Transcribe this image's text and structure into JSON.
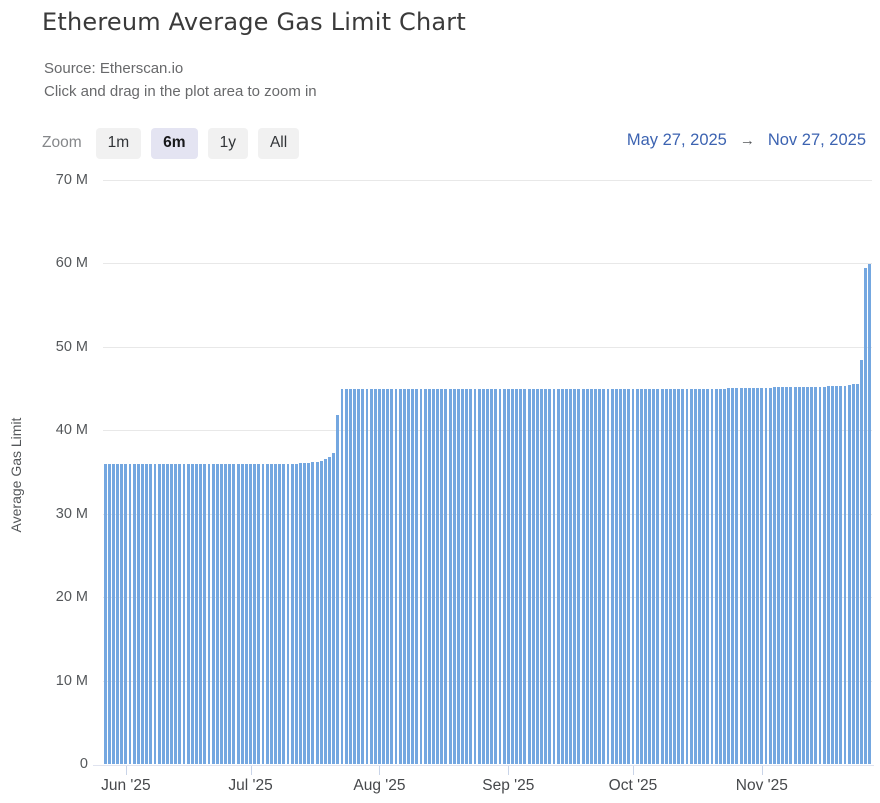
{
  "header": {
    "title": "Ethereum Average Gas Limit Chart",
    "source": "Source: Etherscan.io",
    "hint": "Click and drag in the plot area to zoom in"
  },
  "zoom_controls": {
    "label": "Zoom",
    "buttons": [
      {
        "label": "1m",
        "selected": false
      },
      {
        "label": "6m",
        "selected": true
      },
      {
        "label": "1y",
        "selected": false
      },
      {
        "label": "All",
        "selected": false
      }
    ]
  },
  "date_range": {
    "from": "May 27, 2025",
    "arrow": "→",
    "to": "Nov 27, 2025"
  },
  "colors": {
    "bar": "#74a7e0",
    "grid_line": "#e8e8e8",
    "axis_line": "#dfe3ef",
    "tick_mark": "#c9d4e8",
    "date_link": "#3c63b1",
    "zoom_button_bg": "#f1f1f1",
    "zoom_button_selected_bg": "#e4e4f2"
  },
  "chart_data": {
    "type": "bar",
    "title": "Ethereum Average Gas Limit Chart",
    "xlabel": "",
    "ylabel": "Average Gas Limit",
    "unit": "millions of gas (M)",
    "interval": "daily",
    "start_date": "May 27, 2025",
    "end_date": "Nov 27, 2025",
    "ylim_m": [
      0,
      70
    ],
    "grid": true,
    "legend": "none",
    "y_ticks": [
      {
        "label": "70 M",
        "value_m": 70
      },
      {
        "label": "60 M",
        "value_m": 60
      },
      {
        "label": "50 M",
        "value_m": 50
      },
      {
        "label": "40 M",
        "value_m": 40
      },
      {
        "label": "30 M",
        "value_m": 30
      },
      {
        "label": "20 M",
        "value_m": 20
      },
      {
        "label": "10 M",
        "value_m": 10
      },
      {
        "label": "0",
        "value_m": 0
      }
    ],
    "x_ticks": [
      {
        "label": "Jun '25",
        "day_index": 5
      },
      {
        "label": "Jul '25",
        "day_index": 35
      },
      {
        "label": "Aug '25",
        "day_index": 66
      },
      {
        "label": "Sep '25",
        "day_index": 97
      },
      {
        "label": "Oct '25",
        "day_index": 127
      },
      {
        "label": "Nov '25",
        "day_index": 158
      }
    ],
    "values_m": [
      35.9,
      35.9,
      35.9,
      35.9,
      35.9,
      35.9,
      35.9,
      35.9,
      35.9,
      35.9,
      35.9,
      35.9,
      35.9,
      35.9,
      35.9,
      35.9,
      35.9,
      35.9,
      35.9,
      35.9,
      35.9,
      35.9,
      35.9,
      35.9,
      35.9,
      35.9,
      35.9,
      35.9,
      35.9,
      35.9,
      35.9,
      35.9,
      35.9,
      35.9,
      35.9,
      35.9,
      35.9,
      35.9,
      35.9,
      35.9,
      35.9,
      35.9,
      35.9,
      35.9,
      35.9,
      35.9,
      35.9,
      36.0,
      36.0,
      36.1,
      36.2,
      36.2,
      36.3,
      36.5,
      36.8,
      37.3,
      41.8,
      44.9,
      44.9,
      44.9,
      44.9,
      44.9,
      44.9,
      44.9,
      44.9,
      44.9,
      44.9,
      44.9,
      44.9,
      44.9,
      44.9,
      44.9,
      44.9,
      44.9,
      44.9,
      44.9,
      44.9,
      44.9,
      44.9,
      44.9,
      44.9,
      44.9,
      44.9,
      44.9,
      44.9,
      44.9,
      44.9,
      44.9,
      44.9,
      44.9,
      44.9,
      44.9,
      44.9,
      44.9,
      44.9,
      44.9,
      44.9,
      44.9,
      44.9,
      44.9,
      44.9,
      44.9,
      44.9,
      44.9,
      44.9,
      44.9,
      44.9,
      44.9,
      44.9,
      44.9,
      44.9,
      44.9,
      44.9,
      44.9,
      44.9,
      44.9,
      44.9,
      44.9,
      44.9,
      44.9,
      44.9,
      44.9,
      44.9,
      44.9,
      44.9,
      44.9,
      44.9,
      44.9,
      44.9,
      44.9,
      44.9,
      44.9,
      44.9,
      44.9,
      44.9,
      44.9,
      44.9,
      44.9,
      44.9,
      44.9,
      44.9,
      44.9,
      44.9,
      44.9,
      44.9,
      44.9,
      44.9,
      44.9,
      44.9,
      44.9,
      45.0,
      45.0,
      45.0,
      45.0,
      45.0,
      45.0,
      45.0,
      45.0,
      45.0,
      45.0,
      45.0,
      45.1,
      45.1,
      45.1,
      45.1,
      45.1,
      45.1,
      45.1,
      45.2,
      45.2,
      45.2,
      45.2,
      45.2,
      45.2,
      45.3,
      45.3,
      45.3,
      45.3,
      45.3,
      45.4,
      45.5,
      45.5,
      48.4,
      59.4,
      59.9
    ]
  }
}
